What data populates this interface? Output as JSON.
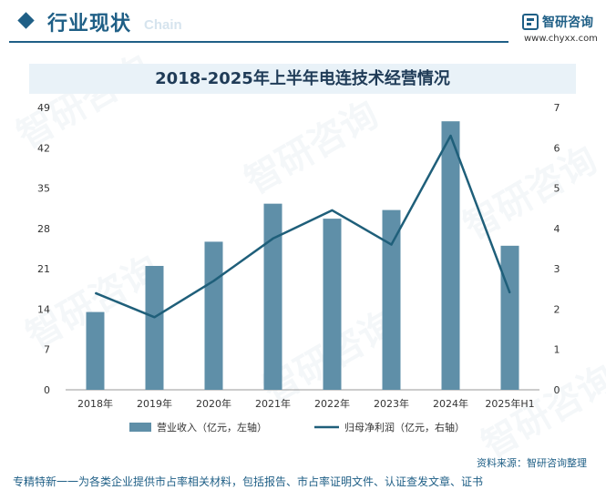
{
  "header": {
    "section_title": "行业现状",
    "section_title_en": "Chain",
    "brand_name": "智研咨询",
    "brand_url": "www.chyxx.com"
  },
  "watermark": "智研咨询",
  "footer": {
    "slogan": "专精特新一一为各类企业提供市占率相关材料，包括报告、市占率证明文件、认证查发文章、证书",
    "source": "资料来源：智研咨询整理"
  },
  "colors": {
    "bar": "#5f8fa8",
    "line": "#1f5f7a",
    "brand": "#1f5f86"
  },
  "chart_data": {
    "type": "bar",
    "title": "2018-2025年上半年电连技术经营情况",
    "categories": [
      "2018年",
      "2019年",
      "2020年",
      "2021年",
      "2022年",
      "2023年",
      "2024年",
      "2025年H1"
    ],
    "series": [
      {
        "name": "营业收入（亿元，左轴）",
        "type": "bar",
        "axis": "left",
        "values": [
          13.5,
          21.5,
          25.7,
          32.3,
          29.7,
          31.2,
          46.6,
          25.0
        ]
      },
      {
        "name": "归母净利润（亿元，右轴）",
        "type": "line",
        "axis": "right",
        "values": [
          2.4,
          1.8,
          2.7,
          3.75,
          4.45,
          3.6,
          6.3,
          2.4
        ]
      }
    ],
    "y_left": {
      "ticks": [
        0,
        7,
        14,
        21,
        28,
        35,
        42,
        49
      ],
      "lim": [
        0,
        49
      ]
    },
    "y_right": {
      "ticks": [
        0,
        1,
        2,
        3,
        4,
        5,
        6,
        7
      ],
      "lim": [
        0,
        7
      ]
    },
    "legend_position": "bottom",
    "grid": false
  }
}
